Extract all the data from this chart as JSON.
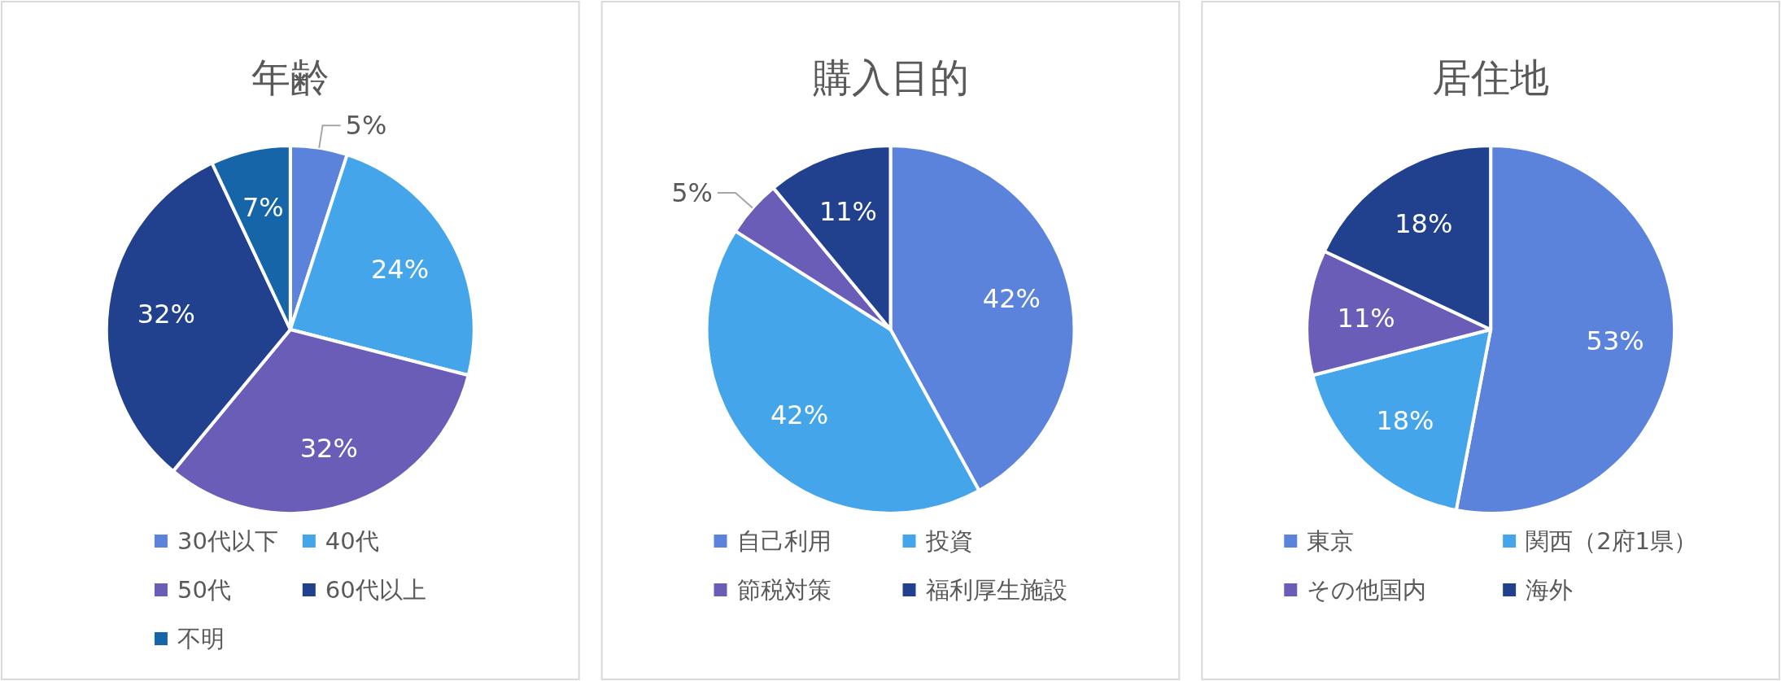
{
  "chart_data": [
    {
      "type": "pie",
      "title": "年齢",
      "categories": [
        "30代以下",
        "40代",
        "50代",
        "60代以上",
        "不明"
      ],
      "values": [
        5,
        24,
        32,
        32,
        7
      ],
      "value_labels": [
        "5%",
        "24%",
        "32%",
        "32%",
        "7%"
      ],
      "colors": [
        "#5b83dc",
        "#45a5ea",
        "#6a5db8",
        "#21418f",
        "#1565a8"
      ],
      "legend": "bottom"
    },
    {
      "type": "pie",
      "title": "購入目的",
      "categories": [
        "自己利用",
        "投資",
        "節税対策",
        "福利厚生施設"
      ],
      "values": [
        42,
        42,
        5,
        11
      ],
      "value_labels": [
        "42%",
        "42%",
        "5%",
        "11%"
      ],
      "colors": [
        "#5b83dc",
        "#45a5ea",
        "#6a5db8",
        "#21418f"
      ],
      "legend": "bottom"
    },
    {
      "type": "pie",
      "title": "居住地",
      "categories": [
        "東京",
        "関西（2府1県）",
        "その他国内",
        "海外"
      ],
      "values": [
        53,
        18,
        11,
        18
      ],
      "value_labels": [
        "53%",
        "18%",
        "11%",
        "18%"
      ],
      "colors": [
        "#5b83dc",
        "#45a5ea",
        "#6a5db8",
        "#21418f"
      ],
      "legend": "bottom"
    }
  ]
}
